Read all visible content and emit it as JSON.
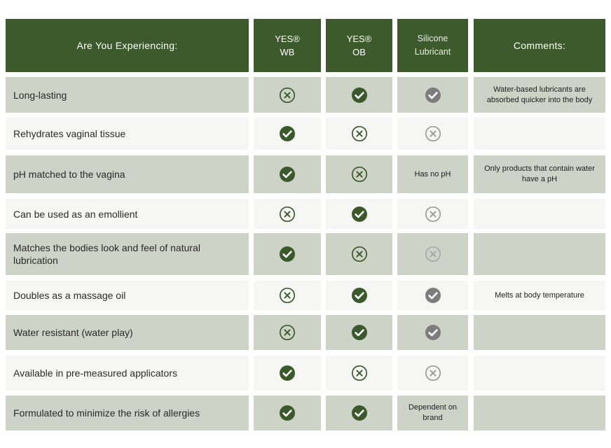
{
  "header": {
    "question": "Are You Experiencing:",
    "columns": [
      {
        "line1": "YES®",
        "line2": "WB"
      },
      {
        "line1": "YES®",
        "line2": "OB"
      },
      {
        "line1": "Silicone",
        "line2": "Lubricant"
      }
    ],
    "comments": "Comments:"
  },
  "colors": {
    "header_bg": "#3d5a2c",
    "check_green": "#3b5a2b",
    "check_grey": "#7d7d7d",
    "row_dark": "#cdd3c6",
    "row_light": "#f6f6f5"
  },
  "rows": [
    {
      "label": "Long-lasting",
      "wb": "cross",
      "ob": "check",
      "sil": "check-grey",
      "sil_text": "",
      "comment": "Water-based lubricants are absorbed quicker into the body"
    },
    {
      "label": "Rehydrates vaginal tissue",
      "wb": "check",
      "ob": "cross",
      "sil": "cross-grey",
      "sil_text": "",
      "comment": ""
    },
    {
      "label": "pH matched to the vagina",
      "wb": "check",
      "ob": "cross",
      "sil": "text",
      "sil_text": "Has no pH",
      "comment": "Only products that contain water have a pH"
    },
    {
      "label": "Can be used as an emollient",
      "wb": "cross",
      "ob": "check",
      "sil": "cross-grey",
      "sil_text": "",
      "comment": ""
    },
    {
      "label": "Matches the bodies look and feel of natural lubrication",
      "wb": "check",
      "ob": "cross",
      "sil": "cross-grey-light",
      "sil_text": "",
      "comment": ""
    },
    {
      "label": "Doubles as a massage oil",
      "wb": "cross",
      "ob": "check",
      "sil": "check-grey",
      "sil_text": "",
      "comment": "Melts at body temperature"
    },
    {
      "label": "Water resistant (water play)",
      "wb": "cross",
      "ob": "check",
      "sil": "check-grey",
      "sil_text": "",
      "comment": ""
    },
    {
      "label": "Available in pre-measured applicators",
      "wb": "check",
      "ob": "cross",
      "sil": "cross-grey",
      "sil_text": "",
      "comment": ""
    },
    {
      "label": "Formulated to minimize the risk of allergies",
      "wb": "check",
      "ob": "check",
      "sil": "text",
      "sil_text": "Dependent on brand",
      "comment": ""
    }
  ]
}
